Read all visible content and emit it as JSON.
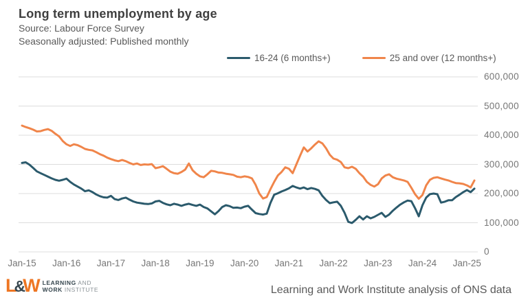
{
  "header": {
    "title": "Long term unemployment by age",
    "source": "Source: Labour Force Survey",
    "note": "Seasonally adjusted: Published monthly"
  },
  "legend": {
    "items": [
      {
        "label": "16-24 (6 months+)",
        "color": "#2b5a6c"
      },
      {
        "label": "25 and over (12 months+)",
        "color": "#f0854a"
      }
    ]
  },
  "footer": {
    "credit": "Learning and Work Institute analysis of ONS data",
    "logo": {
      "l": "L",
      "amp": "&",
      "w": "W",
      "line1_bold": "LEARNING",
      "line1_rest": " AND",
      "line2_bold": "WORK",
      "line2_rest": " INSTITUTE"
    }
  },
  "chart_data": {
    "type": "line",
    "title": "Long term unemployment by age",
    "xlabel": "",
    "ylabel": "",
    "ylim": [
      0,
      600000
    ],
    "grid": "horizontal",
    "legend_position": "top",
    "x_unit": "month",
    "x_range": [
      "Jan-15",
      "Mar-25"
    ],
    "x_tick_labels": [
      "Jan-15",
      "Jan-16",
      "Jan-17",
      "Jan-18",
      "Jan-19",
      "Jan-20",
      "Jan-21",
      "Jan-22",
      "Jan-23",
      "Jan-24",
      "Jan-25"
    ],
    "y_ticks": [
      0,
      100000,
      200000,
      300000,
      400000,
      500000,
      600000
    ],
    "y_tick_labels": [
      "0",
      "100,000",
      "200,000",
      "300,000",
      "400,000",
      "500,000",
      "600,000"
    ],
    "series": [
      {
        "name": "16-24 (6 months+)",
        "color": "#2b5a6c",
        "values": [
          305000,
          307000,
          299000,
          288000,
          276000,
          270000,
          264000,
          258000,
          252000,
          247000,
          244000,
          247000,
          251000,
          240000,
          231000,
          224000,
          217000,
          208000,
          211000,
          205000,
          197000,
          191000,
          187000,
          186000,
          192000,
          181000,
          178000,
          183000,
          186000,
          179000,
          173000,
          169000,
          167000,
          165000,
          164000,
          166000,
          173000,
          175000,
          168000,
          163000,
          160000,
          165000,
          162000,
          158000,
          162000,
          165000,
          161000,
          158000,
          162000,
          154000,
          149000,
          139000,
          129000,
          140000,
          154000,
          160000,
          157000,
          151000,
          152000,
          150000,
          155000,
          158000,
          145000,
          133000,
          130000,
          128000,
          131000,
          168000,
          196000,
          201000,
          207000,
          212000,
          218000,
          226000,
          221000,
          217000,
          221000,
          215000,
          219000,
          216000,
          211000,
          192000,
          178000,
          167000,
          170000,
          172000,
          158000,
          134000,
          103000,
          99000,
          110000,
          122000,
          111000,
          122000,
          115000,
          120000,
          127000,
          134000,
          120000,
          128000,
          141000,
          152000,
          162000,
          170000,
          176000,
          174000,
          150000,
          122000,
          160000,
          186000,
          198000,
          200000,
          198000,
          169000,
          172000,
          177000,
          177000,
          188000,
          196000,
          205000,
          212000,
          205000,
          217000
        ]
      },
      {
        "name": "25 and over (12 months+)",
        "color": "#f0854a",
        "values": [
          433000,
          428000,
          424000,
          419000,
          413000,
          414000,
          418000,
          421000,
          415000,
          405000,
          396000,
          380000,
          369000,
          363000,
          369000,
          366000,
          360000,
          353000,
          350000,
          348000,
          342000,
          335000,
          330000,
          323000,
          318000,
          314000,
          311000,
          315000,
          311000,
          305000,
          300000,
          303000,
          298000,
          300000,
          299000,
          301000,
          287000,
          290000,
          294000,
          285000,
          275000,
          270000,
          268000,
          274000,
          282000,
          303000,
          280000,
          268000,
          259000,
          256000,
          266000,
          278000,
          276000,
          272000,
          271000,
          268000,
          266000,
          264000,
          258000,
          256000,
          259000,
          257000,
          252000,
          230000,
          200000,
          183000,
          188000,
          215000,
          240000,
          262000,
          274000,
          290000,
          285000,
          270000,
          300000,
          330000,
          358000,
          344000,
          355000,
          368000,
          379000,
          372000,
          355000,
          333000,
          320000,
          316000,
          308000,
          290000,
          287000,
          292000,
          285000,
          270000,
          258000,
          240000,
          230000,
          224000,
          232000,
          252000,
          262000,
          266000,
          256000,
          251000,
          248000,
          245000,
          240000,
          220000,
          198000,
          182000,
          195000,
          228000,
          247000,
          254000,
          256000,
          252000,
          248000,
          245000,
          240000,
          236000,
          235000,
          233000,
          228000,
          221000,
          245000
        ]
      }
    ]
  }
}
